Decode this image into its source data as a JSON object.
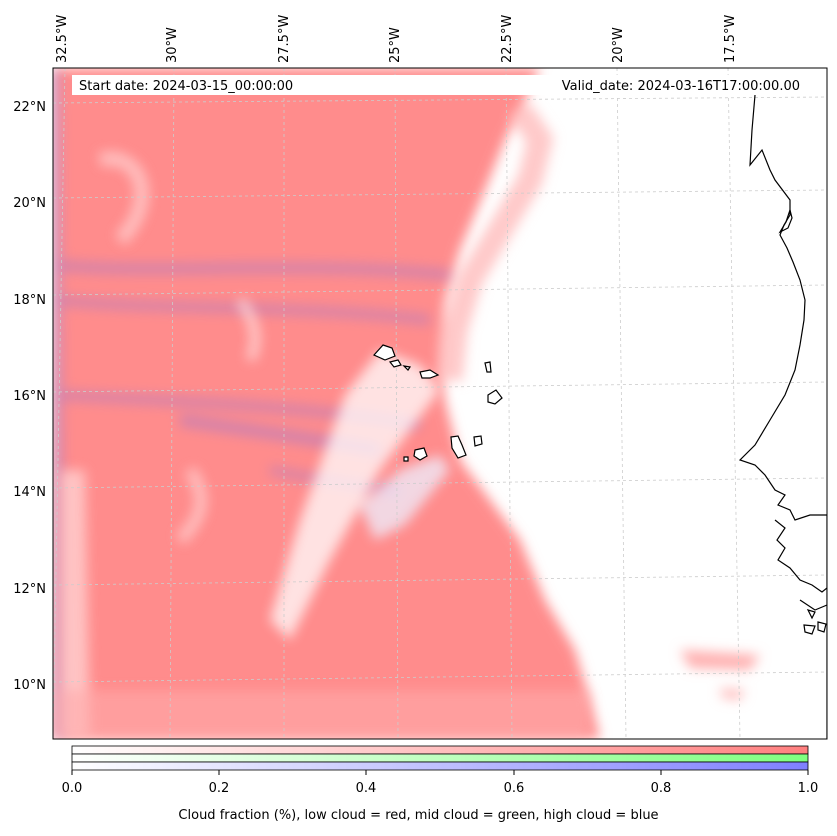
{
  "header": {
    "start_date": "Start date: 2024-03-15_00:00:00",
    "valid_date": "Valid_date: 2024-03-16T17:00:00.00"
  },
  "longitude_ticks": [
    "32.5°W",
    "30°W",
    "27.5°W",
    "25°W",
    "22.5°W",
    "20°W",
    "17.5°W"
  ],
  "latitude_ticks": [
    "22°N",
    "20°N",
    "18°N",
    "16°N",
    "14°N",
    "12°N",
    "10°N"
  ],
  "colorbar": {
    "ticks": [
      "0.0",
      "0.2",
      "0.4",
      "0.6",
      "0.8",
      "1.0"
    ],
    "caption": "Cloud fraction (%), low cloud = red, mid cloud = green, high cloud = blue",
    "colors": {
      "low": "#ff7f7f",
      "mid": "#7fff7f",
      "high": "#7f7fff"
    }
  },
  "colors": {
    "low_cloud": "#ff8c8c",
    "high_cloud": "#8f86f0",
    "coastline": "#000000",
    "grid": "#cccccc"
  }
}
